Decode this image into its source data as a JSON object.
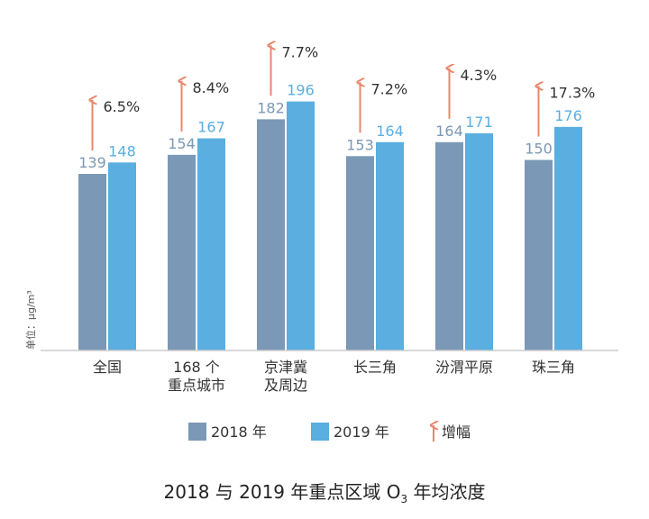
{
  "chart_data": {
    "type": "bar",
    "title": "2018 与 2019 年重点区域 O",
    "title_sub": "3",
    "title_tail": " 年均浓度",
    "ylabel": "单位：μg/m³",
    "ylim": [
      0,
      200
    ],
    "categories": [
      [
        "全国"
      ],
      [
        "168 个",
        "重点城市"
      ],
      [
        "京津冀",
        "及周边"
      ],
      [
        "长三角"
      ],
      [
        "汾渭平原"
      ],
      [
        "珠三角"
      ]
    ],
    "series": [
      {
        "name": "2018 年",
        "values": [
          139,
          154,
          182,
          153,
          164,
          150
        ],
        "color": "#7b98b6"
      },
      {
        "name": "2019 年",
        "values": [
          148,
          167,
          196,
          164,
          171,
          176
        ],
        "color": "#5aaee0"
      }
    ],
    "growth": [
      "6.5%",
      "8.4%",
      "7.7%",
      "7.2%",
      "4.3%",
      "17.3%"
    ],
    "growth_name": "增幅",
    "arrow_color": "#e8876c",
    "legend_position": "bottom",
    "grid": false
  }
}
